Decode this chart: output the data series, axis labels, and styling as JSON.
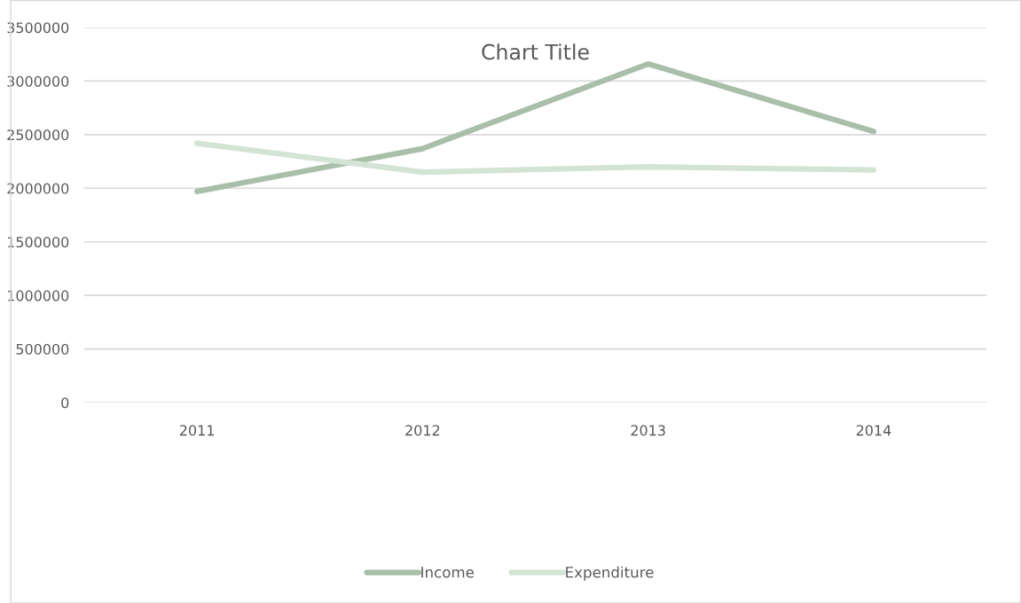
{
  "chart_data": {
    "type": "line",
    "title": "Chart Title",
    "categories": [
      "2011",
      "2012",
      "2013",
      "2014"
    ],
    "series": [
      {
        "name": "Income",
        "color": "#a9bfaa",
        "values": [
          1970000,
          2370000,
          3160000,
          2530000
        ]
      },
      {
        "name": "Expenditure",
        "color": "#d3e3d4",
        "values": [
          2420000,
          2150000,
          2200000,
          2170000
        ]
      }
    ],
    "ylim": [
      0,
      3500000
    ],
    "yticks": [
      0,
      500000,
      1000000,
      1500000,
      2000000,
      2500000,
      3000000,
      3500000
    ],
    "grid": "y",
    "legend": "bottom",
    "marker": "none",
    "line_style": "solid"
  }
}
